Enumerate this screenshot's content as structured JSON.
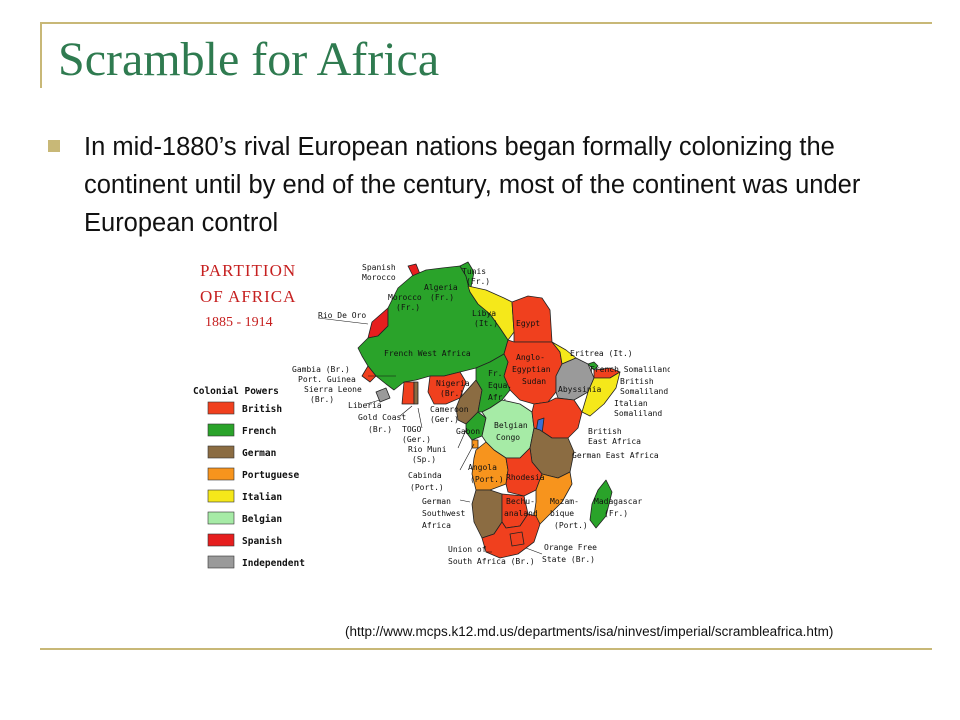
{
  "slide": {
    "title": "Scramble for Africa",
    "bullet": "In mid-1880’s rival European nations began formally colonizing the continent until by end of the century, most of the continent was under European control",
    "citation": "(http://www.mcps.k12.md.us/departments/isa/ninvest/imperial/scrambleafrica.htm)"
  },
  "colors": {
    "title": "#2f7b50",
    "bullet": "#c8b877",
    "frame": "#c8b877",
    "british": "#f0401e",
    "french": "#2aa32a",
    "german": "#8b6c42",
    "portuguese": "#f7941d",
    "italian": "#f5e81a",
    "belgian": "#a6eba6",
    "spanish": "#e61e1e",
    "independent": "#9a9a9a"
  },
  "map": {
    "title_line1": "PARTITION",
    "title_line2": "OF AFRICA",
    "years": "1885 - 1914",
    "legend_title": "Colonial Powers",
    "legend": [
      {
        "label": "British",
        "color": "#f0401e"
      },
      {
        "label": "French",
        "color": "#2aa32a"
      },
      {
        "label": "German",
        "color": "#8b6c42"
      },
      {
        "label": "Portuguese",
        "color": "#f7941d"
      },
      {
        "label": "Italian",
        "color": "#f5e81a"
      },
      {
        "label": "Belgian",
        "color": "#a6eba6"
      },
      {
        "label": "Spanish",
        "color": "#e61e1e"
      },
      {
        "label": "Independent",
        "color": "#9a9a9a"
      }
    ],
    "labels": {
      "spanish_morocco_1": "Spanish",
      "spanish_morocco_2": "Morocco",
      "tunis_1": "Tunis",
      "tunis_2": "(Fr.)",
      "algeria_1": "Algeria",
      "algeria_2": "(Fr.)",
      "morocco_1": "Morocco",
      "morocco_2": "(Fr.)",
      "libya_1": "Libya",
      "libya_2": "(It.)",
      "egypt": "Egypt",
      "rio_de_oro": "Rio De Oro",
      "french_west_africa": "French West Africa",
      "anglo_1": "Anglo-",
      "anglo_2": "Egyptian",
      "anglo_3": "Sudan",
      "eritrea": "Eritrea (It.)",
      "french_somaliland": "French Somaliland",
      "british_somaliland_1": "British",
      "british_somaliland_2": "Somaliland",
      "abyssinia": "Abyssinia",
      "italian_somaliland_1": "Italian",
      "italian_somaliland_2": "Somaliland",
      "gambia_1": "Gambia (Br.)",
      "gambia_2": "Port. Guinea",
      "gambia_3": "Sierra Leone",
      "gambia_4": "(Br.)",
      "liberia": "Liberia",
      "gold_coast_1": "Gold Coast",
      "gold_coast_2": "(Br.)",
      "nigeria_1": "Nigeria",
      "nigeria_2": "(Br.)",
      "fr_equa_1": "Fr.",
      "fr_equa_2": "Equa.",
      "fr_equa_3": "Afr.",
      "cameroon_1": "Cameroon",
      "cameroon_2": "(Ger.)",
      "togo_1": "TOGO",
      "togo_2": "(Ger.)",
      "gabon": "Gabon",
      "belgian_congo_1": "Belgian",
      "belgian_congo_2": "Congo",
      "rio_muni_1": "Rio Muni",
      "rio_muni_2": "(Sp.)",
      "british_east_africa_1": "British",
      "british_east_africa_2": "East Africa",
      "german_east_africa": "German East Africa",
      "cabinda_1": "Cabinda",
      "cabinda_2": "(Port.)",
      "angola_1": "Angola",
      "angola_2": "(Port.)",
      "rhodesia": "Rhodesia",
      "gsw_1": "German",
      "gsw_2": "Southwest",
      "gsw_3": "Africa",
      "bechuanaland_1": "Bechu-",
      "bechuanaland_2": "analand",
      "mozambique_1": "Mozam-",
      "mozambique_2": "bique",
      "mozambique_3": "(Port.)",
      "madagascar_1": "Madagascar",
      "madagascar_2": "(Fr.)",
      "union_sa_1": "Union of",
      "union_sa_2": "South Africa (Br.)",
      "orange_1": "Orange Free",
      "orange_2": "State (Br.)"
    }
  }
}
